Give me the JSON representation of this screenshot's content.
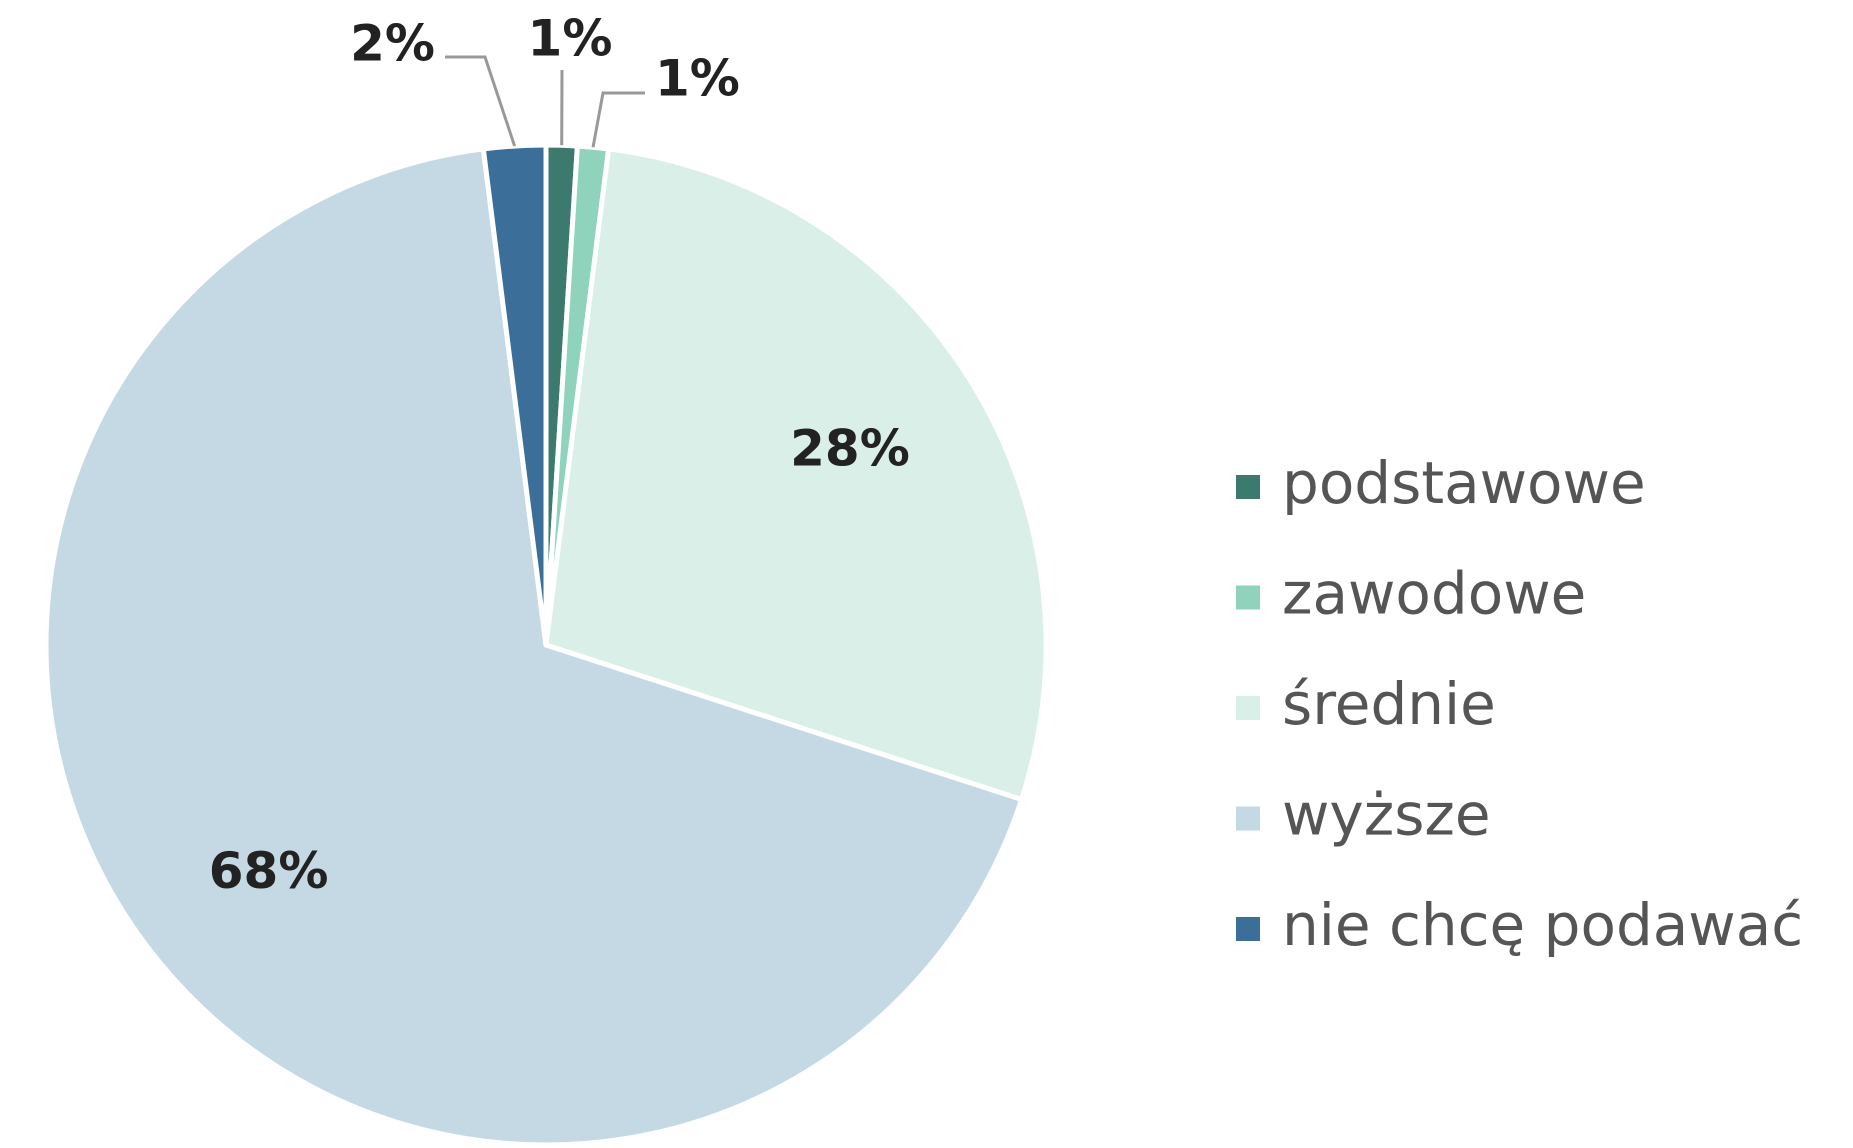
{
  "chart_data": {
    "type": "pie",
    "categories": [
      "podstawowe",
      "zawodowe",
      "średnie",
      "wyższe",
      "nie chcę podawać"
    ],
    "values": [
      1,
      1,
      28,
      68,
      2
    ],
    "value_labels": [
      "1%",
      "1%",
      "28%",
      "68%",
      "2%"
    ],
    "colors": [
      "#3d7a6e",
      "#8fd3bd",
      "#d9efe8",
      "#c5d9e4",
      "#3b6e98"
    ],
    "legend": "right"
  }
}
